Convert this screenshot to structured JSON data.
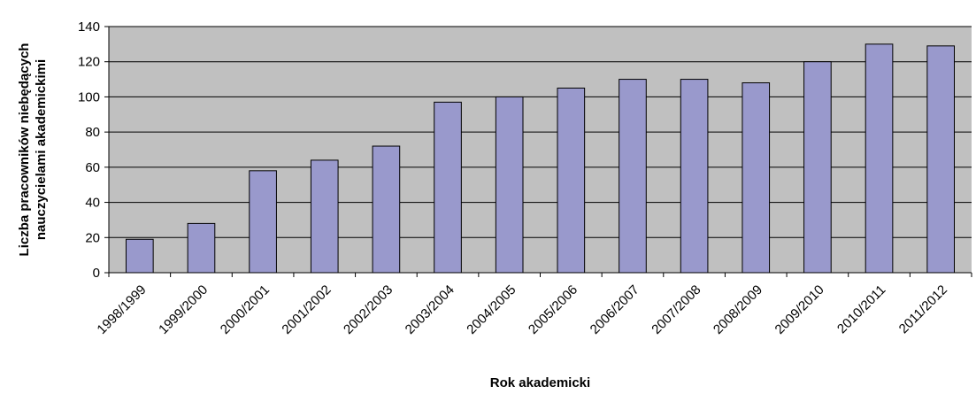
{
  "chart_data": {
    "type": "bar",
    "categories": [
      "1998/1999",
      "1999/2000",
      "2000/2001",
      "2001/2002",
      "2002/2003",
      "2003/2004",
      "2004/2005",
      "2005/2006",
      "2006/2007",
      "2007/2008",
      "2008/2009",
      "2009/2010",
      "2010/2011",
      "2011/2012"
    ],
    "values": [
      19,
      28,
      58,
      64,
      72,
      97,
      100,
      105,
      110,
      110,
      108,
      120,
      130,
      129
    ],
    "title": "",
    "xlabel": "Rok akademicki",
    "ylabel_lines": [
      "Liczba pracowników niebędących",
      "nauczycielami akademickimi"
    ],
    "ylim": [
      0,
      140
    ],
    "yticks": [
      0,
      20,
      40,
      60,
      80,
      100,
      120,
      140
    ],
    "grid": true,
    "legend": "none",
    "colors": {
      "plot_background": "#c0c0c0",
      "bar_fill": "#9999cc",
      "bar_stroke": "#000000",
      "grid": "#000000"
    }
  }
}
